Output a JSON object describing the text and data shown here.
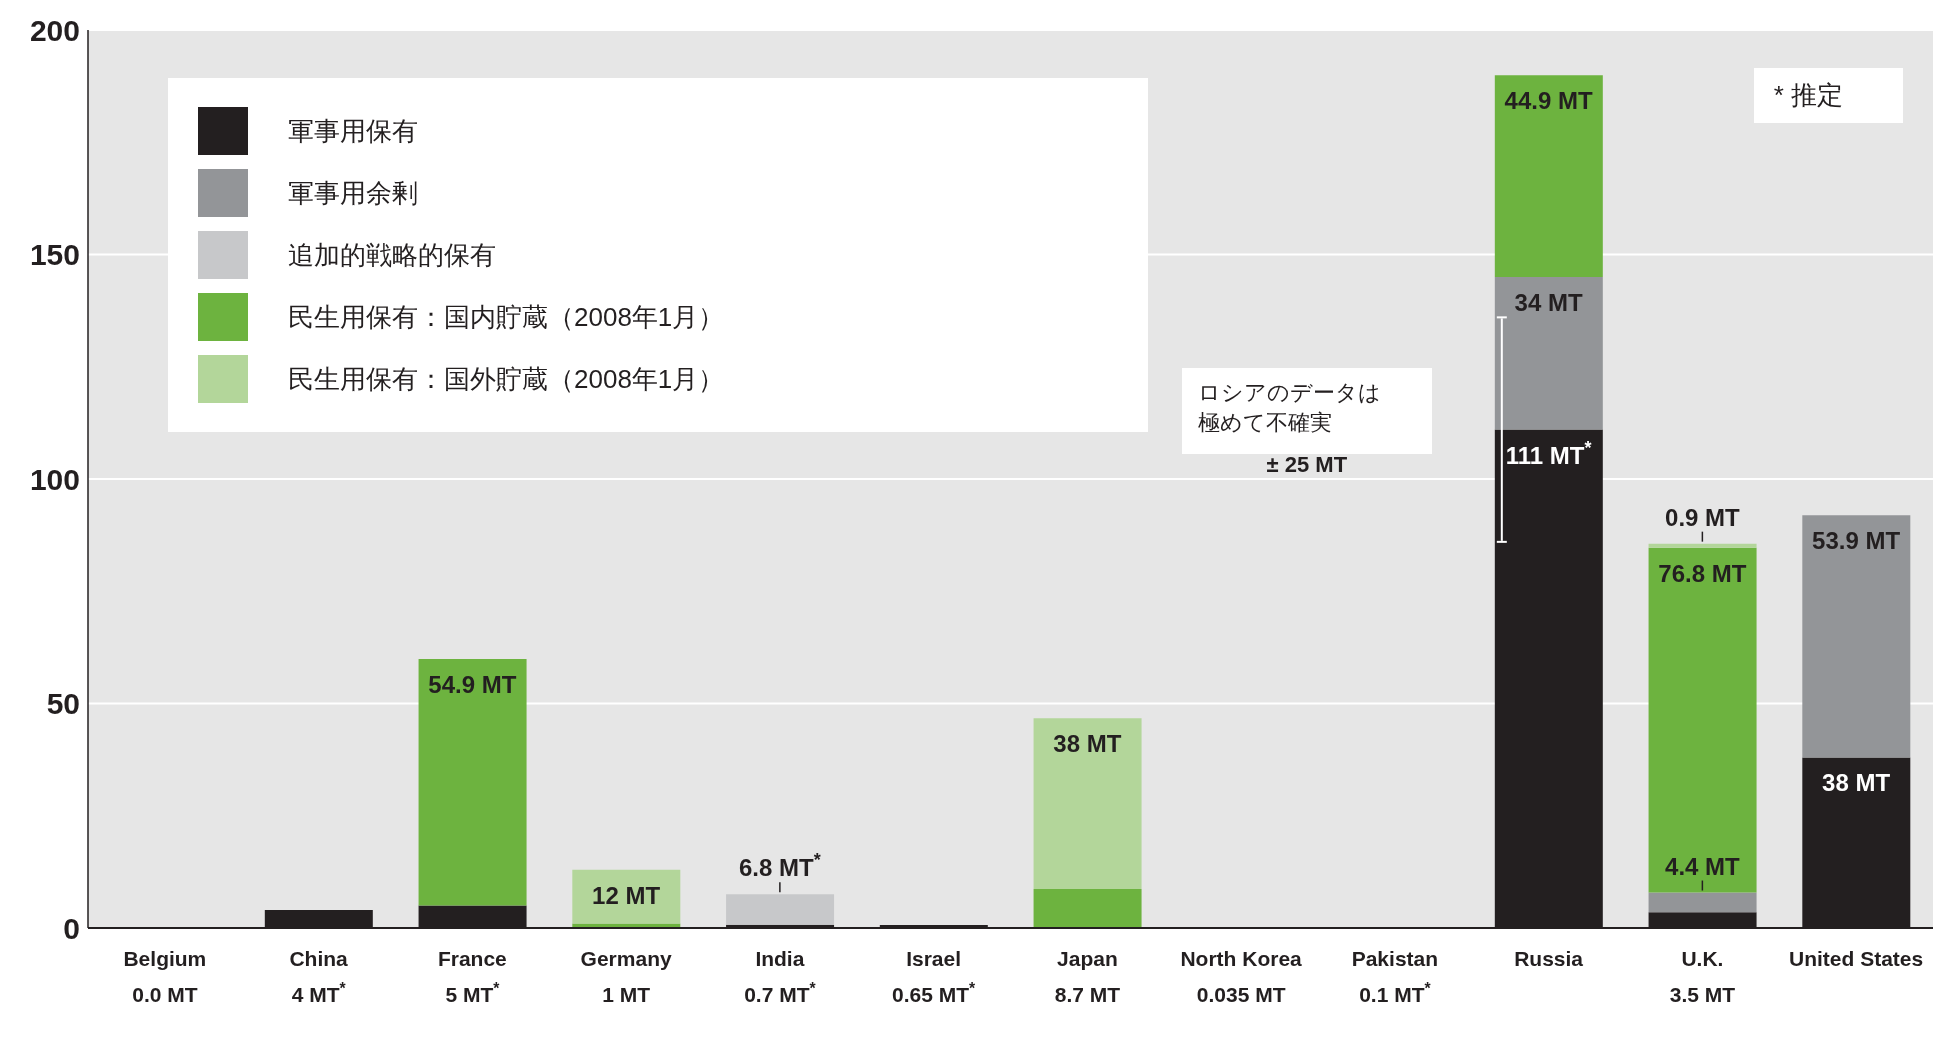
{
  "chart_data": {
    "type": "bar",
    "stacked": true,
    "categories": [
      "Belgium\n0.0 MT",
      "China\n4 MT$^{*}$",
      "France\n5 MT$^{*}$",
      "Germany\n1 MT",
      "India\n0.7 MT$^{*}$",
      "Israel\n0.65 MT$^{*}$",
      "Japan\n8.7 MT",
      "North Korea\n0.035 MT",
      "Pakistan\n0.1 MT$^{*}$",
      "Russia",
      "U.K.\n3.5 MT",
      "United States"
    ],
    "series": [
      {
        "name": "軍事用保有",
        "color": "#231f20",
        "values": [
          0,
          4,
          5,
          null,
          0.7,
          0.65,
          null,
          0.035,
          0.1,
          111,
          3.5,
          38
        ],
        "value_labels": [
          null,
          null,
          null,
          null,
          null,
          null,
          null,
          null,
          null,
          "111 MT$^{*}$",
          null,
          "38 MT"
        ],
        "errors": [
          null,
          null,
          null,
          null,
          null,
          null,
          null,
          null,
          null,
          25,
          null,
          null
        ]
      },
      {
        "name": "軍事用余剰",
        "color": "#939598",
        "values": [
          null,
          null,
          null,
          null,
          null,
          null,
          null,
          null,
          null,
          34,
          4.4,
          53.9
        ],
        "value_labels": [
          null,
          null,
          null,
          null,
          null,
          null,
          null,
          null,
          null,
          "34 MT",
          "4.4 MT",
          "53.9 MT"
        ]
      },
      {
        "name": "追加的戦略的保有",
        "color": "#c7c8ca",
        "values": [
          null,
          null,
          null,
          null,
          6.8,
          null,
          null,
          null,
          null,
          null,
          null,
          null
        ],
        "value_labels": [
          null,
          null,
          null,
          null,
          "6.8 MT$^{*}$",
          null,
          null,
          null,
          null,
          null,
          null,
          null
        ]
      },
      {
        "name": "民生用保有：国内貯蔵（2008年1月）",
        "color": "#6db33f",
        "values": [
          null,
          null,
          54.9,
          1,
          null,
          null,
          8.7,
          null,
          null,
          44.9,
          76.8,
          null
        ],
        "value_labels": [
          null,
          null,
          "54.9 MT",
          null,
          null,
          null,
          null,
          null,
          null,
          "44.9 MT",
          "76.8 MT",
          null
        ]
      },
      {
        "name": "民生用保有：国外貯蔵（2008年1月）",
        "color": "#b3d69a",
        "values": [
          null,
          null,
          null,
          12,
          null,
          null,
          38,
          null,
          null,
          null,
          0.9,
          null
        ],
        "value_labels": [
          null,
          null,
          null,
          "12 MT",
          null,
          null,
          "38 MT",
          null,
          null,
          null,
          "0.9 MT",
          null
        ]
      }
    ],
    "ylim": [
      0,
      200
    ],
    "yticks": [
      0,
      50,
      100,
      150,
      200
    ],
    "grid": "y",
    "legend": "top left",
    "annotations": [
      "* 推定",
      "ロシアのデータは極めて不確実",
      "± 25 MT"
    ]
  }
}
